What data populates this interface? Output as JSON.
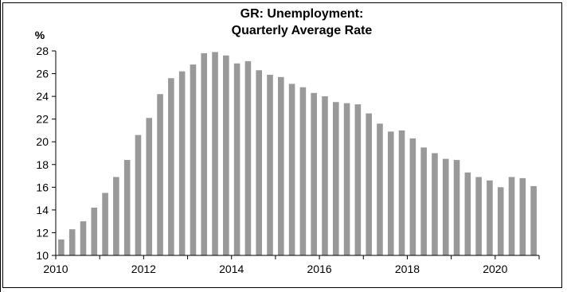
{
  "chart_data": {
    "type": "bar",
    "title_lines": [
      "GR: Unemployment:",
      "Quarterly Average Rate"
    ],
    "ylabel": "%",
    "xlabel": "",
    "ylim": [
      10,
      28
    ],
    "y_ticks": [
      "10",
      "12",
      "14",
      "16",
      "18",
      "20",
      "22",
      "24",
      "26",
      "28"
    ],
    "x_tick_labels": [
      "2010",
      "2012",
      "2014",
      "2016",
      "2018",
      "2020"
    ],
    "x_range": [
      2010,
      2021
    ],
    "bar_color": "#999999",
    "grid": false,
    "legend": "none",
    "categories": [
      "2010-Q1",
      "2010-Q2",
      "2010-Q3",
      "2010-Q4",
      "2011-Q1",
      "2011-Q2",
      "2011-Q3",
      "2011-Q4",
      "2012-Q1",
      "2012-Q2",
      "2012-Q3",
      "2012-Q4",
      "2013-Q1",
      "2013-Q2",
      "2013-Q3",
      "2013-Q4",
      "2014-Q1",
      "2014-Q2",
      "2014-Q3",
      "2014-Q4",
      "2015-Q1",
      "2015-Q2",
      "2015-Q3",
      "2015-Q4",
      "2016-Q1",
      "2016-Q2",
      "2016-Q3",
      "2016-Q4",
      "2017-Q1",
      "2017-Q2",
      "2017-Q3",
      "2017-Q4",
      "2018-Q1",
      "2018-Q2",
      "2018-Q3",
      "2018-Q4",
      "2019-Q1",
      "2019-Q2",
      "2019-Q3",
      "2019-Q4",
      "2020-Q1",
      "2020-Q2",
      "2020-Q3",
      "2020-Q4"
    ],
    "values": [
      11.4,
      12.3,
      13.0,
      14.2,
      15.5,
      16.9,
      18.4,
      20.6,
      22.1,
      24.2,
      25.6,
      26.2,
      26.8,
      27.8,
      27.9,
      27.6,
      26.9,
      27.1,
      26.3,
      25.9,
      25.7,
      25.1,
      24.8,
      24.3,
      24.0,
      23.5,
      23.4,
      23.3,
      22.5,
      21.6,
      20.9,
      21.0,
      20.3,
      19.5,
      19.0,
      18.5,
      18.4,
      17.3,
      16.9,
      16.6,
      16.0,
      16.9,
      16.8,
      16.1
    ]
  }
}
